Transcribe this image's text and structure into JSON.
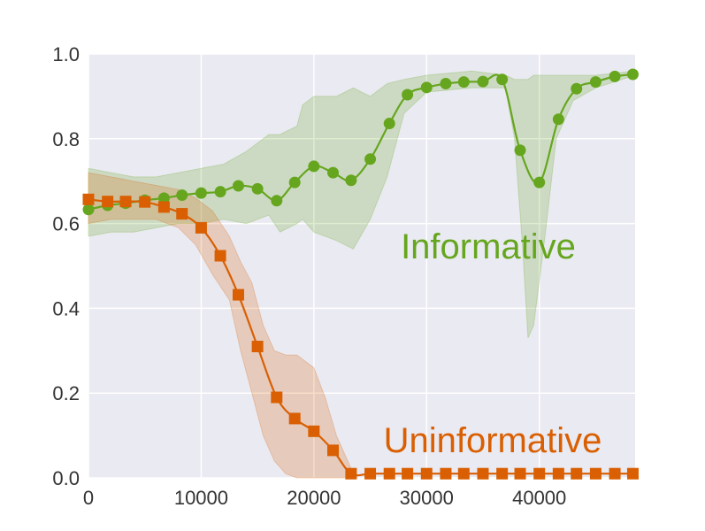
{
  "chart_data": {
    "type": "line",
    "title": "",
    "xlabel": "",
    "ylabel": "",
    "xlim": [
      0,
      48500
    ],
    "ylim": [
      0,
      1.0
    ],
    "grid": true,
    "background": "#eaeaf2",
    "grid_color": "#ffffff",
    "x_ticks": [
      0,
      10000,
      20000,
      30000,
      40000
    ],
    "x_tick_labels": [
      "0",
      "10000",
      "20000",
      "30000",
      "40000"
    ],
    "y_ticks": [
      0,
      0.2,
      0.4,
      0.6,
      0.8,
      1.0
    ],
    "y_tick_labels": [
      "0.0",
      "0.2",
      "0.4",
      "0.6",
      "0.8",
      "1.0"
    ],
    "annotations": [
      {
        "text": "Informative",
        "color": "#66a61e"
      },
      {
        "text": "Uninformative",
        "color": "#d95f02"
      }
    ],
    "series": [
      {
        "color": "#66a61e",
        "marker": "circle",
        "x": [
          0,
          1700,
          3300,
          5000,
          6700,
          8300,
          10000,
          11700,
          13300,
          15000,
          16700,
          18300,
          20000,
          21700,
          23300,
          25000,
          26700,
          28300,
          30000,
          31700,
          33300,
          35000,
          36700,
          38300,
          40000,
          41700,
          43300,
          45000,
          46700,
          48300
        ],
        "values": [
          0.633,
          0.643,
          0.648,
          0.655,
          0.66,
          0.667,
          0.672,
          0.675,
          0.689,
          0.682,
          0.654,
          0.697,
          0.735,
          0.72,
          0.702,
          0.752,
          0.836,
          0.904,
          0.921,
          0.93,
          0.934,
          0.935,
          0.94,
          0.773,
          0.697,
          0.846,
          0.918,
          0.934,
          0.947,
          0.952
        ],
        "band_x": [
          0,
          2000,
          4000,
          6000,
          8000,
          10000,
          12000,
          14000,
          16000,
          17000,
          18500,
          19000,
          20000,
          22000,
          23500,
          25000,
          26500,
          28000,
          30000,
          34000,
          37000,
          37800,
          38500,
          39000,
          39500,
          40500,
          41500,
          43000,
          45000,
          48500
        ],
        "band_upper": [
          0.73,
          0.72,
          0.71,
          0.71,
          0.72,
          0.73,
          0.74,
          0.77,
          0.81,
          0.81,
          0.83,
          0.88,
          0.9,
          0.9,
          0.92,
          0.9,
          0.93,
          0.94,
          0.95,
          0.96,
          0.95,
          0.94,
          0.94,
          0.94,
          0.95,
          0.95,
          0.95,
          0.95,
          0.95,
          0.96
        ],
        "band_lower": [
          0.57,
          0.58,
          0.58,
          0.59,
          0.6,
          0.6,
          0.61,
          0.6,
          0.62,
          0.58,
          0.6,
          0.61,
          0.58,
          0.56,
          0.54,
          0.61,
          0.71,
          0.86,
          0.91,
          0.92,
          0.92,
          0.8,
          0.55,
          0.33,
          0.36,
          0.57,
          0.8,
          0.89,
          0.92,
          0.95
        ]
      },
      {
        "color": "#d95f02",
        "marker": "square",
        "x": [
          0,
          1700,
          3300,
          5000,
          6700,
          8300,
          10000,
          11700,
          13300,
          15000,
          16700,
          18300,
          20000,
          21700,
          23300,
          25000,
          26700,
          28300,
          30000,
          31700,
          33300,
          35000,
          36700,
          38300,
          40000,
          41700,
          43300,
          45000,
          46700,
          48300
        ],
        "values": [
          0.657,
          0.652,
          0.652,
          0.651,
          0.639,
          0.623,
          0.59,
          0.524,
          0.432,
          0.31,
          0.19,
          0.14,
          0.11,
          0.065,
          0.01,
          0.01,
          0.01,
          0.01,
          0.01,
          0.01,
          0.01,
          0.01,
          0.01,
          0.01,
          0.01,
          0.01,
          0.01,
          0.01,
          0.01,
          0.01
        ],
        "band_x": [
          0,
          2000,
          4000,
          6000,
          8000,
          9500,
          11000,
          12500,
          13500,
          14500,
          15500,
          16500,
          17500,
          18500,
          20000,
          21000,
          22000,
          23000,
          23500
        ],
        "band_upper": [
          0.72,
          0.71,
          0.7,
          0.69,
          0.68,
          0.66,
          0.63,
          0.57,
          0.51,
          0.46,
          0.36,
          0.3,
          0.29,
          0.29,
          0.26,
          0.19,
          0.1,
          0.04,
          0.01
        ],
        "band_lower": [
          0.6,
          0.61,
          0.61,
          0.61,
          0.59,
          0.55,
          0.48,
          0.42,
          0.3,
          0.2,
          0.1,
          0.04,
          0.01,
          0.0,
          0.0,
          0.0,
          0.0,
          0.0,
          0.0
        ]
      }
    ]
  }
}
